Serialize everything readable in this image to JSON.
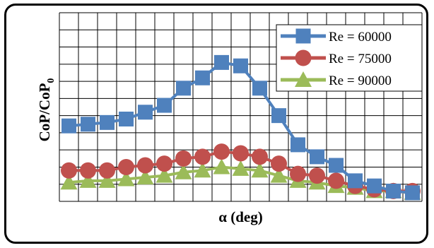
{
  "chart_data": {
    "type": "line",
    "xlabel": "α (deg)",
    "ylabel": "CoP/CoP",
    "ylabel_subscript": "0",
    "x_count": 19,
    "y_max": 11,
    "grid": true,
    "legend_position": "top-right",
    "series": [
      {
        "name": "Re = 60000",
        "color": "#4f81bd",
        "marker": "square",
        "values": [
          4.4,
          4.5,
          4.6,
          4.8,
          5.2,
          5.6,
          6.6,
          7.2,
          8.1,
          7.9,
          6.6,
          5.0,
          3.3,
          2.6,
          2.1,
          1.2,
          0.9,
          0.6,
          0.5
        ]
      },
      {
        "name": "Re = 75000",
        "color": "#c0504d",
        "marker": "circle",
        "values": [
          1.8,
          1.8,
          1.8,
          2.0,
          2.1,
          2.2,
          2.5,
          2.6,
          2.9,
          2.8,
          2.6,
          2.2,
          1.6,
          1.5,
          1.2,
          0.9,
          0.7,
          0.6,
          0.6
        ]
      },
      {
        "name": "Re = 90000",
        "color": "#9bbb59",
        "marker": "triangle",
        "values": [
          1.1,
          1.2,
          1.2,
          1.3,
          1.4,
          1.5,
          1.7,
          1.8,
          2.0,
          1.9,
          1.8,
          1.5,
          1.2,
          1.1,
          0.9,
          0.8,
          0.6,
          0.6,
          0.5
        ]
      }
    ]
  }
}
